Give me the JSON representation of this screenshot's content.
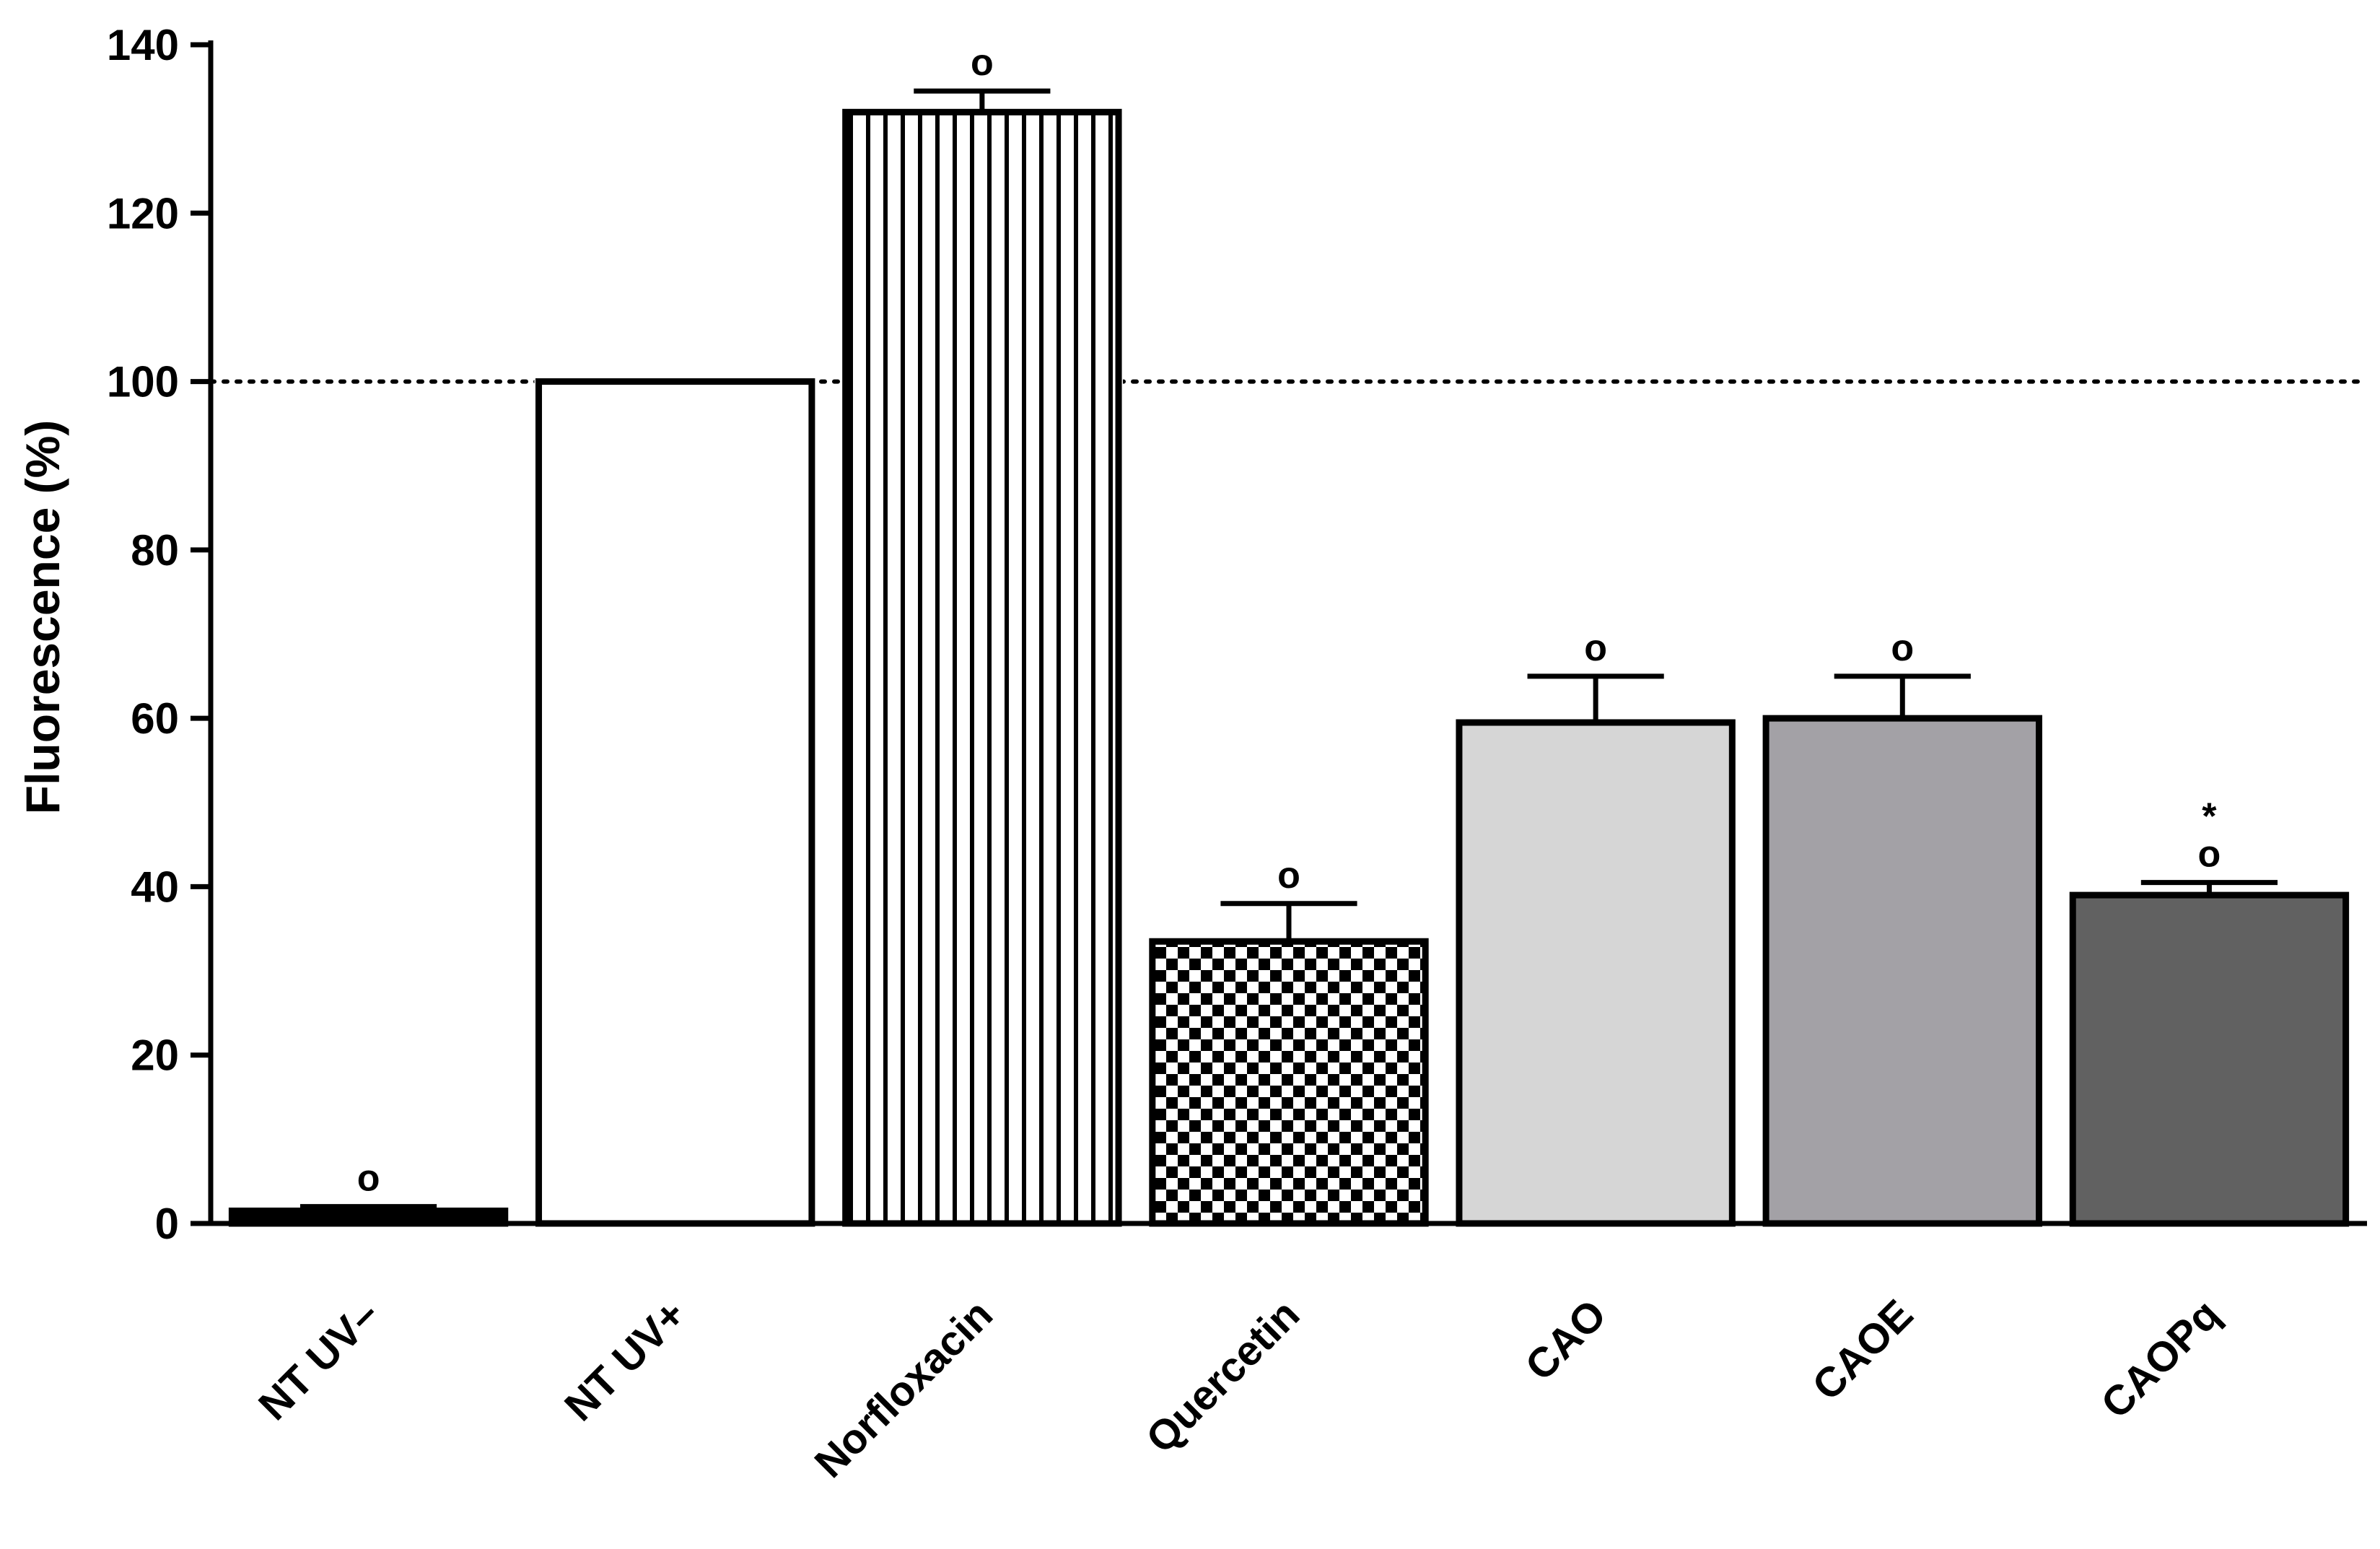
{
  "chart_data": {
    "type": "bar",
    "title": "",
    "xlabel": "",
    "ylabel": "Fluorescence (%)",
    "ylim": [
      0,
      140
    ],
    "yticks": [
      0,
      20,
      40,
      60,
      80,
      100,
      120,
      140
    ],
    "reference_line": {
      "y": 100,
      "style": "dotted"
    },
    "grid": false,
    "categories": [
      "NT UV–",
      "NT UV+",
      "Norfloxacin",
      "Quercetin",
      "CAO",
      "CAOE",
      "CAOPq"
    ],
    "values": [
      1.5,
      100,
      132,
      33.5,
      59.5,
      60,
      39
    ],
    "errors": [
      0.5,
      0,
      2.5,
      4.5,
      5.5,
      5,
      1.5
    ],
    "annotations": [
      "o",
      "",
      "o",
      "o",
      "o",
      "o",
      "*\no"
    ],
    "colors": {
      "fills": [
        "#000000",
        "#ffffff",
        "pattern-vertical-lines",
        "pattern-checkerboard",
        "#d6d6d6",
        "#a3a1a6",
        "#616161"
      ],
      "stroke": "#000000"
    }
  }
}
